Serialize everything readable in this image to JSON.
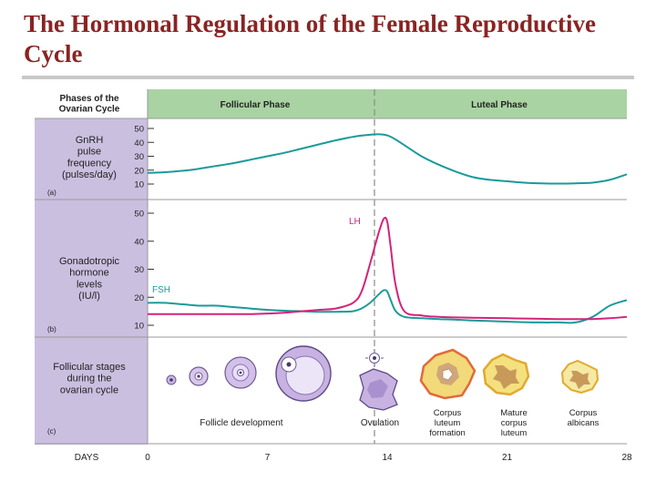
{
  "slide": {
    "title": "The Hormonal Regulation of the Female Reproductive Cycle"
  },
  "colors": {
    "title": "#8b2323",
    "header_band": "#a9d3a2",
    "label_column": "#cbbfe0",
    "gnrh_curve": "#1b9a9a",
    "lh_curve": "#d4237a",
    "fsh_curve": "#1b9a9a",
    "ovulation_line": "#8a8a8a"
  },
  "header": {
    "col1": "Phases of the\nOvarian Cycle",
    "follicular": "Follicular Phase",
    "luteal": "Luteal Phase"
  },
  "panel_a": {
    "label": "GnRH\npulse\nfrequency\n(pulses/day)",
    "letter": "(a)",
    "ticks": [
      "50",
      "40",
      "30",
      "20",
      "10"
    ],
    "ylim": [
      10,
      50
    ],
    "curve": {
      "x": [
        0,
        1,
        2,
        3,
        4,
        5,
        6,
        7,
        8,
        9,
        10,
        11,
        12,
        13,
        13.5,
        14,
        14.5,
        15,
        16,
        17,
        18,
        19,
        20,
        21,
        22,
        23,
        24,
        25,
        26,
        27,
        28
      ],
      "y": [
        18,
        18.5,
        19.5,
        21,
        23,
        25,
        27.5,
        30,
        32.5,
        35.5,
        38.5,
        41.5,
        44,
        45.5,
        45.8,
        45,
        42,
        38,
        30,
        24,
        19,
        15,
        13,
        12,
        11,
        10.5,
        10.3,
        10.5,
        11,
        13,
        17
      ]
    }
  },
  "panel_b": {
    "label": "Gonadotropic\nhormone\nlevels\n(IU/l)",
    "letter": "(b)",
    "ticks": [
      "50",
      "40",
      "30",
      "20",
      "10"
    ],
    "ylim": [
      10,
      50
    ],
    "lh_label": "LH",
    "fsh_label": "FSH",
    "lh": {
      "x": [
        0,
        1,
        2,
        3,
        4,
        5,
        6,
        7,
        8,
        9,
        10,
        11,
        12,
        12.5,
        13,
        13.5,
        13.8,
        14,
        14.2,
        14.5,
        15,
        16,
        17,
        18,
        19,
        20,
        21,
        22,
        23,
        24,
        25,
        26,
        27,
        28
      ],
      "y": [
        14,
        14,
        14,
        14,
        14,
        14,
        14,
        14.2,
        14.5,
        15,
        15.5,
        16,
        18,
        22,
        32,
        43,
        48,
        47,
        38,
        24,
        15,
        13.5,
        13,
        12.8,
        12.7,
        12.6,
        12.5,
        12.4,
        12.3,
        12.2,
        12.2,
        12.2,
        12.5,
        13
      ]
    },
    "fsh": {
      "x": [
        0,
        1,
        2,
        3,
        4,
        5,
        6,
        7,
        8,
        9,
        10,
        11,
        12,
        12.5,
        13,
        13.5,
        13.8,
        14,
        14.2,
        14.5,
        15,
        16,
        17,
        18,
        19,
        20,
        21,
        22,
        23,
        24,
        25,
        26,
        27,
        28
      ],
      "y": [
        18,
        18,
        17.5,
        17,
        17,
        16.5,
        16,
        15.5,
        15.2,
        15,
        14.8,
        14.8,
        15,
        16,
        18,
        21,
        22.5,
        22,
        19,
        15,
        13,
        12.5,
        12.2,
        12,
        11.7,
        11.5,
        11.3,
        11.1,
        11,
        11,
        11,
        13,
        17,
        19
      ]
    }
  },
  "panel_c": {
    "label": "Follicular stages\nduring the\novarian cycle",
    "letter": "(c)",
    "captions": {
      "development": "Follicle development",
      "ovulation": "Ovulation",
      "formation": "Corpus\nluteum\nformation",
      "mature": "Mature\ncorpus\nluteum",
      "albicans": "Corpus\nalbicans"
    }
  },
  "x_axis": {
    "label": "DAYS",
    "ticks": [
      "0",
      "7",
      "14",
      "21",
      "28"
    ],
    "xlim": [
      0,
      28
    ]
  }
}
